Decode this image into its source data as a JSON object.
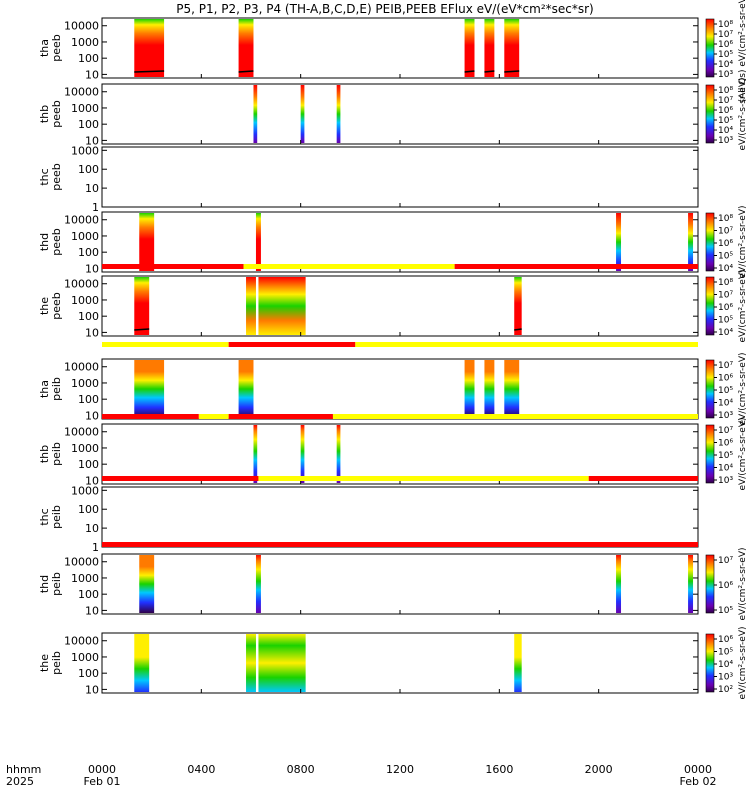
{
  "title": "P5, P1, P2, P3, P4 (TH-A,B,C,D,E) PEIB,PEEB EFlux eV/(eV*cm²*sec*sr)",
  "colors": {
    "red": "#ff0000",
    "orange": "#ff7a00",
    "yellow": "#ffef00",
    "green": "#19d200",
    "cyan": "#00c8ff",
    "blue": "#2030ff",
    "purple": "#6a00b0",
    "darkpurple": "#30004a",
    "bar_red": "#ff0000",
    "bar_yellow": "#ffff00"
  },
  "x_axis": {
    "row1_label": "hhmm",
    "row2_label": "2025",
    "ticks": [
      "0000",
      "0400",
      "0800",
      "1200",
      "1600",
      "2000",
      "0000"
    ],
    "date_labels": [
      "Feb 01",
      "Feb 02"
    ]
  },
  "chart_data": {
    "type": "heatmap",
    "x_range_hours": [
      0,
      24
    ],
    "y_scale": "log",
    "panels": [
      {
        "id": "tha-peeb",
        "ylabel": [
          "tha",
          "peeb"
        ],
        "yticks": [
          "10",
          "100",
          "1000",
          "10000"
        ],
        "ylim": [
          6,
          30000
        ],
        "colorbar": {
          "ticks": [
            "10³",
            "10⁴",
            "10⁵",
            "10⁶",
            "10⁷",
            "10⁸"
          ],
          "label": "(All Qs) eV/(cm²-s-sr-eV)"
        },
        "segments": [
          [
            1.3,
            2.5,
            "flux"
          ],
          [
            5.5,
            6.1,
            "flux"
          ],
          [
            14.6,
            15.0,
            "flux"
          ],
          [
            15.4,
            15.8,
            "flux"
          ],
          [
            16.2,
            16.8,
            "flux"
          ]
        ]
      },
      {
        "id": "thb-peeb",
        "ylabel": [
          "thb",
          "peeb"
        ],
        "yticks": [
          "10",
          "100",
          "1000",
          "10000"
        ],
        "ylim": [
          6,
          30000
        ],
        "colorbar": {
          "ticks": [
            "10³",
            "10⁴",
            "10⁵",
            "10⁶",
            "10⁷",
            "10⁸"
          ],
          "label": "eV/(cm²-s-sr-eV)"
        },
        "segments": [
          [
            6.1,
            6.25,
            "spike"
          ],
          [
            8.0,
            8.15,
            "spike"
          ],
          [
            9.45,
            9.6,
            "spike"
          ]
        ]
      },
      {
        "id": "thc-peeb",
        "ylabel": [
          "thc",
          "peeb"
        ],
        "yticks": [
          "1",
          "10",
          "100",
          "1000"
        ],
        "ylim": [
          1,
          1500
        ],
        "colorbar": null,
        "segments": []
      },
      {
        "id": "thd-peeb",
        "ylabel": [
          "thd",
          "peeb"
        ],
        "yticks": [
          "10",
          "100",
          "1000",
          "10000"
        ],
        "ylim": [
          6,
          30000
        ],
        "colorbar": {
          "ticks": [
            "10⁴",
            "10⁵",
            "10⁶",
            "10⁷",
            "10⁸"
          ],
          "label": "eV/(cm²-s-sr-eV)"
        },
        "segments": [
          [
            1.5,
            2.1,
            "flux"
          ],
          [
            6.2,
            6.4,
            "flux"
          ],
          [
            20.7,
            20.9,
            "spike"
          ],
          [
            23.6,
            23.8,
            "spike"
          ]
        ]
      },
      {
        "id": "the-peeb",
        "ylabel": [
          "the",
          "peeb"
        ],
        "yticks": [
          "10",
          "100",
          "1000",
          "10000"
        ],
        "ylim": [
          6,
          30000
        ],
        "colorbar": {
          "ticks": [
            "10⁴",
            "10⁵",
            "10⁶",
            "10⁷",
            "10⁸"
          ],
          "label": "eV/(cm²-s-sr-eV)"
        },
        "segments": [
          [
            1.3,
            1.9,
            "flux"
          ],
          [
            5.8,
            6.2,
            "wide"
          ],
          [
            6.3,
            8.2,
            "wide"
          ],
          [
            16.6,
            16.9,
            "flux"
          ]
        ]
      },
      {
        "id": "tha-peib",
        "ylabel": [
          "tha",
          "peib"
        ],
        "yticks": [
          "10",
          "100",
          "1000",
          "10000"
        ],
        "ylim": [
          6,
          30000
        ],
        "colorbar": {
          "ticks": [
            "10³",
            "10⁴",
            "10⁵",
            "10⁶",
            "10⁷"
          ],
          "label": "eV/(cm²-s-sr-eV)"
        },
        "segments": [
          [
            1.3,
            2.5,
            "ion"
          ],
          [
            5.5,
            6.1,
            "ion"
          ],
          [
            14.6,
            15.0,
            "ion"
          ],
          [
            15.4,
            15.8,
            "ion"
          ],
          [
            16.2,
            16.8,
            "ion"
          ]
        ]
      },
      {
        "id": "thb-peib",
        "ylabel": [
          "thb",
          "peib"
        ],
        "yticks": [
          "10",
          "100",
          "1000",
          "10000"
        ],
        "ylim": [
          6,
          30000
        ],
        "colorbar": {
          "ticks": [
            "10³",
            "10⁴",
            "10⁵",
            "10⁶",
            "10⁷"
          ],
          "label": "eV/(cm²-s-sr-eV)"
        },
        "segments": [
          [
            6.1,
            6.25,
            "ionspike"
          ],
          [
            8.0,
            8.15,
            "ionspike"
          ],
          [
            9.45,
            9.6,
            "ionspike"
          ]
        ]
      },
      {
        "id": "thc-peib",
        "ylabel": [
          "thc",
          "peib"
        ],
        "yticks": [
          "1",
          "10",
          "100",
          "1000"
        ],
        "ylim": [
          1,
          1500
        ],
        "colorbar": null,
        "segments": []
      },
      {
        "id": "thd-peib",
        "ylabel": [
          "thd",
          "peib"
        ],
        "yticks": [
          "10",
          "100",
          "1000",
          "10000"
        ],
        "ylim": [
          6,
          30000
        ],
        "colorbar": {
          "ticks": [
            "10⁵",
            "10⁶",
            "10⁷"
          ],
          "label": "eV/(cm²-s-sr-eV)"
        },
        "segments": [
          [
            1.5,
            2.1,
            "ion"
          ],
          [
            6.2,
            6.4,
            "ionspike"
          ],
          [
            20.7,
            20.9,
            "ionspike"
          ],
          [
            23.6,
            23.8,
            "ionspike"
          ]
        ]
      },
      {
        "id": "the-peib",
        "ylabel": [
          "the",
          "peib"
        ],
        "yticks": [
          "10",
          "100",
          "1000",
          "10000"
        ],
        "ylim": [
          6,
          30000
        ],
        "colorbar": {
          "ticks": [
            "10²",
            "10³",
            "10⁴",
            "10⁵",
            "10⁶"
          ],
          "label": "eV/(cm²-s-sr-eV)"
        },
        "segments": [
          [
            1.3,
            1.9,
            "ionlow"
          ],
          [
            5.8,
            6.2,
            "ionwide"
          ],
          [
            6.3,
            8.2,
            "ionwide"
          ],
          [
            16.6,
            16.9,
            "ionlow"
          ]
        ]
      }
    ],
    "mode_bars": [
      {
        "after_panel": 4,
        "segments": [
          [
            0,
            5.7,
            "red"
          ],
          [
            5.7,
            14.2,
            "yellow"
          ],
          [
            14.2,
            24,
            "red"
          ]
        ]
      },
      {
        "after_panel": 5,
        "segments": [
          [
            0,
            5.1,
            "yellow"
          ],
          [
            5.1,
            10.2,
            "red"
          ],
          [
            10.2,
            24,
            "yellow"
          ]
        ]
      },
      {
        "after_panel": 6,
        "segments": [
          [
            0,
            3.9,
            "red"
          ],
          [
            3.9,
            5.1,
            "yellow"
          ],
          [
            5.1,
            9.3,
            "red"
          ],
          [
            9.3,
            24,
            "yellow"
          ]
        ]
      },
      {
        "after_panel": 7,
        "segments": [
          [
            0,
            6.3,
            "red"
          ],
          [
            6.3,
            19.6,
            "yellow"
          ],
          [
            19.6,
            24,
            "red"
          ]
        ]
      },
      {
        "after_panel": 8,
        "segments": [
          [
            0,
            24,
            "red"
          ]
        ]
      }
    ]
  }
}
